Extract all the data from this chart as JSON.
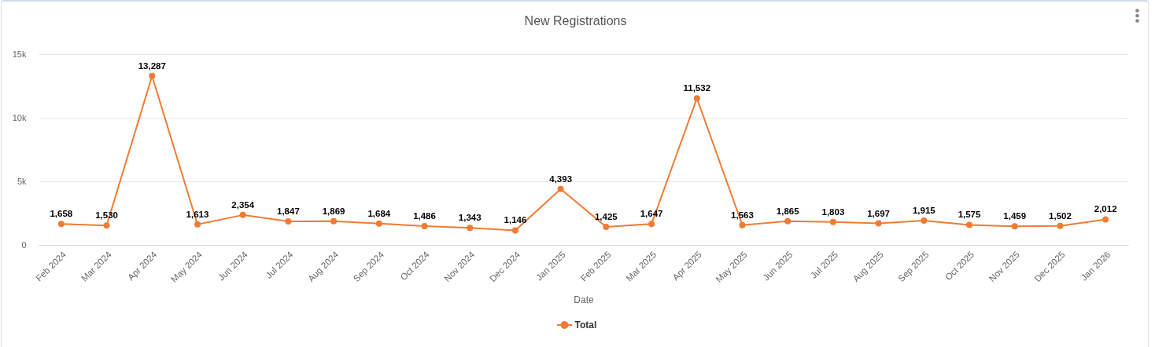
{
  "chart_data": {
    "type": "line",
    "title": "New Registrations",
    "xlabel": "Date",
    "categories": [
      "Feb 2024",
      "Mar 2024",
      "Apr 2024",
      "May 2024",
      "Jun 2024",
      "Jul 2024",
      "Aug 2024",
      "Sep 2024",
      "Oct 2024",
      "Nov 2024",
      "Dec 2024",
      "Jan 2025",
      "Feb 2025",
      "Mar 2025",
      "Apr 2025",
      "May 2025",
      "Jun 2025",
      "Jul 2025",
      "Aug 2025",
      "Sep 2025",
      "Oct 2025",
      "Nov 2025",
      "Dec 2025",
      "Jan 2026"
    ],
    "series": [
      {
        "name": "Total",
        "color": "#f07b32",
        "values": [
          1658,
          1530,
          13287,
          1613,
          2354,
          1847,
          1869,
          1684,
          1486,
          1343,
          1146,
          4393,
          1425,
          1647,
          11532,
          1563,
          1865,
          1803,
          1697,
          1915,
          1575,
          1459,
          1502,
          2012
        ],
        "value_labels": [
          "1,658",
          "1,530",
          "13,287",
          "1,613",
          "2,354",
          "1,847",
          "1,869",
          "1,684",
          "1,486",
          "1,343",
          "1,146",
          "4,393",
          "1,425",
          "1,647",
          "11,532",
          "1,563",
          "1,865",
          "1,803",
          "1,697",
          "1,915",
          "1,575",
          "1,459",
          "1,502",
          "2,012"
        ]
      }
    ],
    "ylim": [
      0,
      15000
    ],
    "yticks": [
      0,
      {
        "value": 5000,
        "label": "5k"
      },
      {
        "value": 10000,
        "label": "10k"
      },
      {
        "value": 15000,
        "label": "15k"
      }
    ],
    "grid": "y",
    "legend": "bottom",
    "marker": "circle"
  }
}
